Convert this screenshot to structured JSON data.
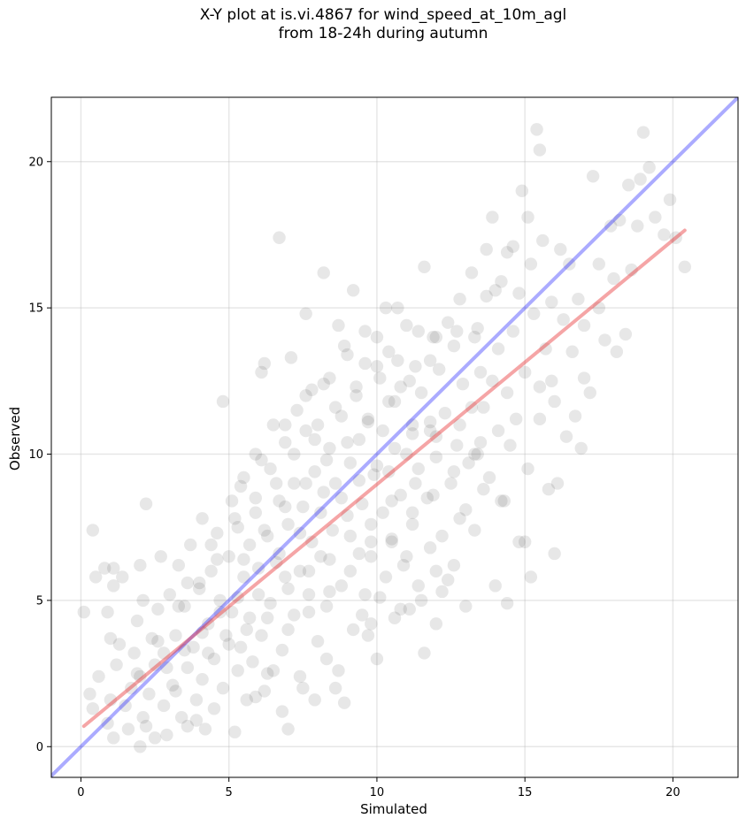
{
  "chart_data": {
    "type": "scatter",
    "title_line1": "X-Y plot at is.vi.4867 for wind_speed_at_10m_agl",
    "title_line2": "from 18-24h during autumn",
    "xlabel": "Simulated",
    "ylabel": "Observed",
    "xlim": [
      -1.0,
      22.2
    ],
    "ylim": [
      -1.05,
      22.2
    ],
    "xticks": [
      0,
      5,
      10,
      15,
      20
    ],
    "yticks": [
      0,
      5,
      10,
      15,
      20
    ],
    "grid": true,
    "identity_line": {
      "slope": 1.0,
      "intercept": 0.0,
      "color": "#0000ff"
    },
    "fit_line": {
      "x_start": 0.1,
      "x_end": 20.4,
      "y_start": 0.7,
      "y_end": 17.65,
      "color": "#e8292b"
    },
    "points": [
      [
        0.1,
        4.6
      ],
      [
        0.4,
        7.4
      ],
      [
        0.5,
        5.8
      ],
      [
        0.3,
        1.8
      ],
      [
        0.4,
        1.3
      ],
      [
        0.6,
        2.4
      ],
      [
        0.8,
        6.1
      ],
      [
        0.9,
        4.6
      ],
      [
        1.1,
        5.5
      ],
      [
        1.1,
        6.1
      ],
      [
        1.0,
        3.7
      ],
      [
        1.2,
        2.8
      ],
      [
        1.0,
        1.6
      ],
      [
        0.9,
        0.8
      ],
      [
        1.1,
        0.3
      ],
      [
        1.3,
        3.5
      ],
      [
        1.4,
        5.8
      ],
      [
        1.6,
        0.6
      ],
      [
        1.5,
        1.4
      ],
      [
        1.7,
        2.0
      ],
      [
        1.8,
        3.2
      ],
      [
        1.9,
        4.3
      ],
      [
        2.0,
        6.2
      ],
      [
        2.1,
        5.0
      ],
      [
        2.2,
        8.3
      ],
      [
        2.0,
        2.4
      ],
      [
        2.1,
        1.0
      ],
      [
        2.2,
        0.7
      ],
      [
        2.0,
        0.0
      ],
      [
        2.3,
        1.8
      ],
      [
        2.4,
        3.7
      ],
      [
        2.5,
        2.8
      ],
      [
        2.6,
        4.7
      ],
      [
        2.7,
        6.5
      ],
      [
        2.8,
        1.4
      ],
      [
        2.9,
        0.4
      ],
      [
        2.8,
        3.2
      ],
      [
        3.0,
        5.2
      ],
      [
        3.1,
        2.1
      ],
      [
        3.2,
        3.8
      ],
      [
        3.3,
        6.2
      ],
      [
        3.4,
        1.0
      ],
      [
        3.5,
        4.8
      ],
      [
        3.6,
        0.7
      ],
      [
        3.6,
        2.7
      ],
      [
        3.7,
        6.9
      ],
      [
        3.8,
        3.4
      ],
      [
        3.9,
        1.6
      ],
      [
        4.0,
        5.4
      ],
      [
        4.1,
        7.8
      ],
      [
        4.1,
        2.3
      ],
      [
        4.2,
        0.6
      ],
      [
        4.3,
        4.2
      ],
      [
        4.4,
        6.0
      ],
      [
        4.5,
        3.0
      ],
      [
        4.5,
        1.3
      ],
      [
        4.6,
        7.3
      ],
      [
        4.7,
        5.0
      ],
      [
        4.8,
        2.0
      ],
      [
        4.8,
        11.8
      ],
      [
        4.9,
        3.8
      ],
      [
        5.0,
        6.5
      ],
      [
        5.1,
        8.4
      ],
      [
        5.1,
        4.6
      ],
      [
        5.2,
        0.5
      ],
      [
        5.3,
        2.6
      ],
      [
        5.3,
        7.5
      ],
      [
        5.4,
        3.4
      ],
      [
        5.5,
        5.8
      ],
      [
        5.5,
        9.2
      ],
      [
        5.6,
        1.6
      ],
      [
        5.7,
        4.4
      ],
      [
        5.7,
        6.9
      ],
      [
        5.8,
        2.9
      ],
      [
        5.9,
        8.0
      ],
      [
        5.9,
        10.0
      ],
      [
        6.0,
        5.2
      ],
      [
        6.1,
        3.8
      ],
      [
        6.1,
        12.8
      ],
      [
        6.2,
        13.1
      ],
      [
        6.2,
        1.9
      ],
      [
        6.3,
        7.2
      ],
      [
        6.4,
        9.5
      ],
      [
        6.4,
        4.9
      ],
      [
        6.5,
        2.6
      ],
      [
        6.5,
        11.0
      ],
      [
        6.6,
        6.3
      ],
      [
        6.7,
        8.4
      ],
      [
        6.7,
        17.4
      ],
      [
        6.8,
        3.3
      ],
      [
        6.9,
        5.8
      ],
      [
        6.9,
        10.4
      ],
      [
        7.0,
        0.6
      ],
      [
        7.0,
        7.6
      ],
      [
        7.1,
        13.3
      ],
      [
        7.2,
        4.5
      ],
      [
        7.2,
        9.0
      ],
      [
        7.3,
        11.5
      ],
      [
        7.4,
        6.0
      ],
      [
        7.4,
        2.4
      ],
      [
        7.5,
        8.2
      ],
      [
        7.6,
        10.8
      ],
      [
        7.6,
        14.8
      ],
      [
        7.7,
        5.2
      ],
      [
        7.8,
        7.0
      ],
      [
        7.8,
        12.2
      ],
      [
        7.9,
        9.4
      ],
      [
        8.0,
        3.6
      ],
      [
        8.0,
        11.0
      ],
      [
        8.1,
        6.5
      ],
      [
        8.2,
        8.7
      ],
      [
        8.2,
        16.2
      ],
      [
        8.3,
        4.8
      ],
      [
        8.4,
        10.2
      ],
      [
        8.4,
        12.6
      ],
      [
        8.5,
        7.4
      ],
      [
        8.6,
        2.0
      ],
      [
        8.6,
        9.0
      ],
      [
        8.7,
        14.4
      ],
      [
        8.8,
        5.5
      ],
      [
        8.8,
        11.3
      ],
      [
        8.9,
        1.5
      ],
      [
        9.0,
        7.9
      ],
      [
        9.0,
        13.4
      ],
      [
        9.1,
        9.7
      ],
      [
        9.2,
        15.6
      ],
      [
        9.2,
        4.0
      ],
      [
        9.3,
        12.0
      ],
      [
        9.4,
        6.6
      ],
      [
        9.4,
        10.5
      ],
      [
        9.5,
        8.3
      ],
      [
        9.6,
        13.1
      ],
      [
        9.6,
        5.2
      ],
      [
        9.7,
        11.2
      ],
      [
        9.8,
        4.2
      ],
      [
        9.8,
        7.0
      ],
      [
        9.9,
        9.3
      ],
      [
        10.0,
        14.0
      ],
      [
        10.0,
        3.0
      ],
      [
        10.1,
        12.6
      ],
      [
        10.2,
        8.0
      ],
      [
        10.2,
        10.8
      ],
      [
        10.3,
        5.8
      ],
      [
        10.4,
        13.5
      ],
      [
        10.4,
        9.4
      ],
      [
        10.5,
        7.1
      ],
      [
        10.6,
        11.8
      ],
      [
        10.6,
        4.4
      ],
      [
        10.7,
        15.0
      ],
      [
        10.8,
        8.6
      ],
      [
        10.8,
        12.3
      ],
      [
        10.9,
        6.2
      ],
      [
        11.0,
        10.0
      ],
      [
        11.0,
        14.4
      ],
      [
        11.1,
        4.7
      ],
      [
        11.2,
        11.0
      ],
      [
        11.2,
        7.6
      ],
      [
        11.3,
        13.0
      ],
      [
        11.4,
        5.5
      ],
      [
        11.4,
        9.5
      ],
      [
        11.5,
        12.1
      ],
      [
        11.6,
        3.2
      ],
      [
        11.6,
        16.4
      ],
      [
        11.7,
        8.5
      ],
      [
        11.8,
        10.8
      ],
      [
        11.8,
        6.8
      ],
      [
        11.9,
        14.0
      ],
      [
        12.0,
        4.2
      ],
      [
        12.0,
        9.9
      ],
      [
        12.1,
        12.9
      ],
      [
        12.2,
        7.2
      ],
      [
        12.3,
        11.4
      ],
      [
        12.4,
        5.7
      ],
      [
        12.4,
        14.5
      ],
      [
        12.5,
        9.0
      ],
      [
        12.6,
        13.7
      ],
      [
        12.6,
        6.2
      ],
      [
        12.7,
        10.3
      ],
      [
        12.8,
        15.3
      ],
      [
        12.8,
        7.8
      ],
      [
        12.9,
        12.4
      ],
      [
        13.0,
        4.8
      ],
      [
        13.1,
        9.7
      ],
      [
        13.2,
        16.2
      ],
      [
        13.2,
        11.6
      ],
      [
        13.3,
        7.4
      ],
      [
        13.4,
        14.3
      ],
      [
        13.4,
        10.0
      ],
      [
        13.5,
        12.8
      ],
      [
        13.6,
        8.8
      ],
      [
        13.7,
        17.0
      ],
      [
        13.7,
        15.4
      ],
      [
        13.8,
        9.2
      ],
      [
        13.9,
        18.1
      ],
      [
        13.9,
        12.5
      ],
      [
        14.0,
        5.5
      ],
      [
        14.1,
        13.6
      ],
      [
        14.1,
        10.8
      ],
      [
        14.2,
        15.9
      ],
      [
        14.3,
        8.4
      ],
      [
        14.4,
        16.9
      ],
      [
        14.4,
        12.1
      ],
      [
        14.5,
        10.3
      ],
      [
        14.6,
        17.1
      ],
      [
        14.6,
        14.2
      ],
      [
        14.7,
        11.2
      ],
      [
        14.8,
        7.0
      ],
      [
        14.8,
        15.5
      ],
      [
        14.9,
        19.0
      ],
      [
        15.0,
        12.8
      ],
      [
        15.1,
        18.1
      ],
      [
        15.1,
        9.5
      ],
      [
        15.2,
        16.5
      ],
      [
        15.3,
        14.8
      ],
      [
        15.4,
        21.1
      ],
      [
        15.5,
        20.4
      ],
      [
        15.5,
        12.3
      ],
      [
        15.6,
        17.3
      ],
      [
        15.7,
        13.6
      ],
      [
        15.8,
        8.8
      ],
      [
        15.9,
        15.2
      ],
      [
        16.0,
        11.8
      ],
      [
        16.1,
        9.0
      ],
      [
        16.2,
        17.0
      ],
      [
        16.3,
        14.6
      ],
      [
        16.4,
        10.6
      ],
      [
        16.5,
        16.5
      ],
      [
        16.6,
        13.5
      ],
      [
        16.8,
        15.3
      ],
      [
        17.0,
        14.4
      ],
      [
        17.2,
        12.1
      ],
      [
        17.3,
        19.5
      ],
      [
        17.5,
        16.5
      ],
      [
        17.7,
        13.9
      ],
      [
        17.9,
        17.8
      ],
      [
        18.1,
        13.5
      ],
      [
        18.2,
        18.0
      ],
      [
        18.4,
        14.1
      ],
      [
        18.5,
        19.2
      ],
      [
        18.6,
        16.3
      ],
      [
        18.8,
        17.8
      ],
      [
        18.9,
        19.4
      ],
      [
        19.0,
        21.0
      ],
      [
        19.2,
        19.8
      ],
      [
        19.4,
        18.1
      ],
      [
        19.7,
        17.5
      ],
      [
        19.9,
        18.7
      ],
      [
        20.1,
        17.4
      ],
      [
        20.4,
        16.4
      ],
      [
        15.0,
        7.0
      ],
      [
        15.2,
        5.8
      ],
      [
        14.4,
        4.9
      ],
      [
        14.2,
        8.4
      ],
      [
        13.5,
        10.4
      ],
      [
        16.0,
        6.6
      ],
      [
        15.5,
        11.2
      ],
      [
        12.0,
        6.0
      ],
      [
        11.5,
        5.0
      ],
      [
        10.8,
        4.7
      ],
      [
        9.7,
        3.8
      ],
      [
        8.7,
        2.6
      ],
      [
        7.9,
        1.6
      ],
      [
        6.8,
        1.2
      ],
      [
        5.9,
        1.7
      ],
      [
        3.9,
        0.9
      ],
      [
        2.5,
        0.3
      ],
      [
        13.0,
        8.1
      ],
      [
        12.2,
        5.3
      ],
      [
        11.0,
        6.5
      ],
      [
        10.1,
        5.1
      ],
      [
        9.5,
        4.5
      ],
      [
        8.3,
        3.0
      ],
      [
        7.5,
        2.0
      ],
      [
        6.3,
        2.5
      ],
      [
        16.7,
        11.3
      ],
      [
        17.0,
        12.6
      ],
      [
        16.9,
        10.2
      ],
      [
        15.9,
        12.5
      ],
      [
        17.5,
        15.0
      ],
      [
        18.0,
        16.0
      ],
      [
        14.0,
        15.6
      ],
      [
        13.3,
        14.0
      ],
      [
        12.7,
        14.2
      ],
      [
        12.0,
        14.0
      ],
      [
        11.4,
        14.2
      ],
      [
        10.7,
        13.2
      ],
      [
        10.0,
        13.0
      ],
      [
        9.3,
        12.3
      ],
      [
        8.6,
        11.6
      ],
      [
        7.9,
        10.5
      ],
      [
        7.2,
        10.0
      ],
      [
        6.6,
        9.0
      ],
      [
        5.9,
        8.5
      ],
      [
        5.2,
        7.8
      ],
      [
        4.6,
        6.4
      ],
      [
        4.0,
        5.6
      ],
      [
        3.3,
        4.8
      ],
      [
        2.6,
        3.6
      ],
      [
        1.9,
        2.5
      ],
      [
        3.2,
        1.9
      ],
      [
        4.3,
        3.2
      ],
      [
        5.0,
        3.5
      ],
      [
        5.6,
        4.0
      ],
      [
        6.3,
        4.4
      ],
      [
        7.0,
        5.4
      ],
      [
        7.7,
        6.0
      ],
      [
        8.4,
        6.4
      ],
      [
        9.1,
        7.2
      ],
      [
        9.8,
        7.6
      ],
      [
        10.5,
        8.4
      ],
      [
        11.3,
        9.0
      ],
      [
        12.0,
        10.6
      ],
      [
        12.8,
        11.0
      ],
      [
        13.6,
        11.6
      ],
      [
        3.6,
        5.6
      ],
      [
        4.4,
        6.9
      ],
      [
        5.4,
        8.9
      ],
      [
        6.1,
        9.8
      ],
      [
        6.9,
        11.0
      ],
      [
        7.6,
        12.0
      ],
      [
        8.2,
        12.4
      ],
      [
        8.9,
        13.7
      ],
      [
        9.6,
        14.2
      ],
      [
        10.3,
        15.0
      ],
      [
        6.0,
        6.1
      ],
      [
        6.7,
        6.6
      ],
      [
        7.4,
        7.3
      ],
      [
        8.1,
        8.0
      ],
      [
        8.8,
        8.5
      ],
      [
        9.4,
        9.1
      ],
      [
        10.0,
        9.6
      ],
      [
        10.6,
        10.2
      ],
      [
        11.2,
        10.7
      ],
      [
        11.8,
        11.1
      ],
      [
        5.3,
        5.1
      ],
      [
        4.7,
        4.6
      ],
      [
        4.1,
        3.9
      ],
      [
        3.5,
        3.3
      ],
      [
        2.9,
        2.7
      ],
      [
        5.5,
        6.4
      ],
      [
        6.2,
        7.4
      ],
      [
        6.9,
        8.2
      ],
      [
        7.6,
        9.0
      ],
      [
        8.3,
        9.8
      ],
      [
        9.0,
        10.4
      ],
      [
        9.7,
        11.1
      ],
      [
        10.4,
        11.8
      ],
      [
        11.1,
        12.5
      ],
      [
        11.8,
        13.2
      ],
      [
        7.0,
        4.0
      ],
      [
        7.7,
        4.6
      ],
      [
        8.4,
        5.3
      ],
      [
        9.1,
        6.0
      ],
      [
        9.8,
        6.5
      ],
      [
        10.5,
        7.0
      ],
      [
        11.2,
        8.0
      ],
      [
        11.9,
        8.6
      ],
      [
        12.6,
        9.4
      ],
      [
        13.3,
        10.0
      ]
    ]
  }
}
